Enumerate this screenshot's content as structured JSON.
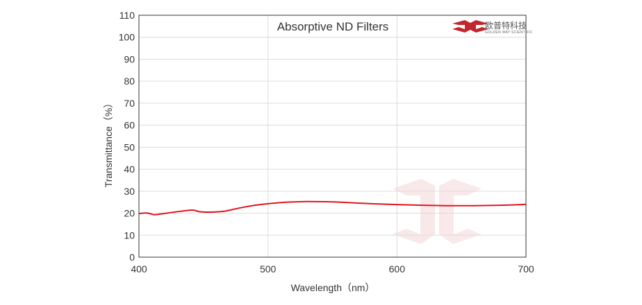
{
  "chart_data": {
    "type": "line",
    "title": "Absorptive ND Filters",
    "xlabel": "Wavelength（nm）",
    "ylabel": "Transmittance（%）",
    "xlim": [
      400,
      700
    ],
    "ylim": [
      0,
      110
    ],
    "x_ticks": [
      "400",
      "500",
      "600",
      "700"
    ],
    "y_ticks": [
      "0",
      "10",
      "20",
      "30",
      "40",
      "50",
      "60",
      "70",
      "80",
      "90",
      "100",
      "110"
    ],
    "grid": true,
    "series": [
      {
        "color": "#e0141e",
        "x": [
          400,
          405,
          408,
          412,
          420,
          430,
          440,
          443,
          447,
          455,
          465,
          472,
          480,
          490,
          500,
          515,
          530,
          545,
          560,
          580,
          600,
          620,
          640,
          660,
          680,
          700
        ],
        "y": [
          19.8,
          20.1,
          19.9,
          19.3,
          19.9,
          20.7,
          21.4,
          21.3,
          20.7,
          20.5,
          20.8,
          21.6,
          22.6,
          23.6,
          24.3,
          25.0,
          25.3,
          25.2,
          24.9,
          24.3,
          23.9,
          23.6,
          23.4,
          23.4,
          23.6,
          24.0
        ]
      }
    ]
  },
  "logo": {
    "brand_cn": "欧普特科技",
    "brand_en": "GOLDEN WAY SCIENTIFIC",
    "color": "#c1272d"
  }
}
